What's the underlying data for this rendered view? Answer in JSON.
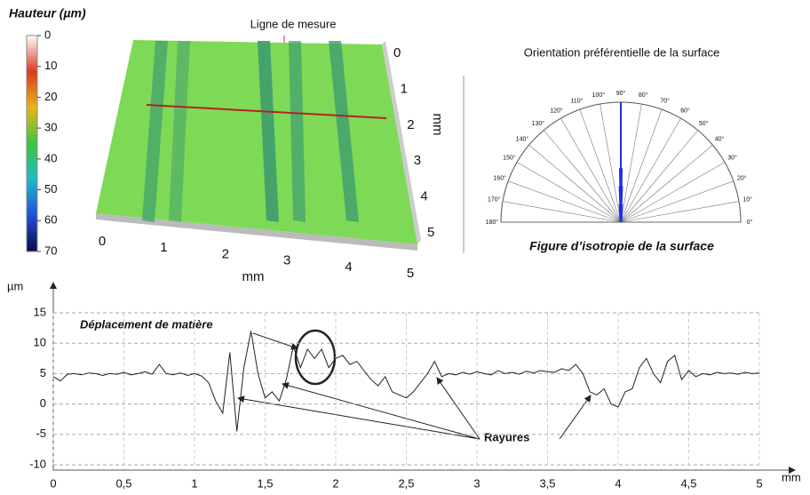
{
  "chart_data": [
    {
      "type": "colorbar",
      "title": "Hauteur (µm)",
      "ylim": [
        0,
        70
      ],
      "yticks": [
        0,
        10,
        20,
        30,
        40,
        50,
        60,
        70
      ],
      "colorscale": [
        "#ffffff",
        "#d93a1e",
        "#e8b41b",
        "#3cc63c",
        "#21b9c9",
        "#1f4fd8",
        "#0a0a45"
      ]
    },
    {
      "type": "surface3d",
      "annotation": "Ligne de mesure",
      "xlabel": "mm",
      "ylabel": "mm",
      "xlim": [
        0,
        5
      ],
      "ylim": [
        0,
        5
      ],
      "xticks": [
        0,
        1,
        2,
        3,
        4,
        5
      ],
      "yticks": [
        0,
        1,
        2,
        3,
        4,
        5
      ],
      "color": "#7ed957",
      "line_color": "#b22222"
    },
    {
      "type": "polar",
      "title": "Orientation préférentielle de la surface",
      "caption": "Figure d’isotropie  de la surface",
      "xlim": [
        0,
        180
      ],
      "xticks": [
        {
          "value": 0,
          "label": "0°"
        },
        {
          "value": 10,
          "label": "10°"
        },
        {
          "value": 20,
          "label": "20°"
        },
        {
          "value": 30,
          "label": "30°"
        },
        {
          "value": 40,
          "label": "40°"
        },
        {
          "value": 50,
          "label": "50°"
        },
        {
          "value": 60,
          "label": "60°"
        },
        {
          "value": 70,
          "label": "70°"
        },
        {
          "value": 80,
          "label": "80°"
        },
        {
          "value": 90,
          "label": "90°"
        },
        {
          "value": 100,
          "label": "100°"
        },
        {
          "value": 110,
          "label": "110°"
        },
        {
          "value": 120,
          "label": "120°"
        },
        {
          "value": 130,
          "label": "130°"
        },
        {
          "value": 140,
          "label": "140°"
        },
        {
          "value": 150,
          "label": "150°"
        },
        {
          "value": 160,
          "label": "160°"
        },
        {
          "value": 170,
          "label": "170°"
        },
        {
          "value": 180,
          "label": "180°"
        }
      ],
      "x": [
        80,
        84,
        86,
        88,
        89,
        90,
        91,
        92,
        94,
        96,
        100
      ],
      "values": [
        0.05,
        0.1,
        0.15,
        0.3,
        0.45,
        1.0,
        0.45,
        0.3,
        0.15,
        0.1,
        0.05
      ],
      "color": "#1f2fe0"
    },
    {
      "type": "line",
      "ylabel": "µm",
      "xlabel": "mm",
      "annotations": [
        "Déplacement de matière",
        "Rayures"
      ],
      "xlim": [
        0,
        5
      ],
      "ylim": [
        -10,
        15
      ],
      "xticks": [
        0,
        {
          "value": 0.5,
          "label": "0,5"
        },
        1,
        {
          "value": 1.5,
          "label": "1,5"
        },
        2,
        {
          "value": 2.5,
          "label": "2,5"
        },
        3,
        {
          "value": 3.5,
          "label": "3,5"
        },
        4,
        {
          "value": 4.5,
          "label": "4,5"
        },
        5
      ],
      "yticks": [
        -10,
        -5,
        0,
        5,
        10,
        15
      ],
      "grid": true,
      "color": "#222222",
      "x": [
        0,
        0.05,
        0.1,
        0.15,
        0.2,
        0.25,
        0.3,
        0.35,
        0.4,
        0.45,
        0.5,
        0.55,
        0.6,
        0.65,
        0.7,
        0.75,
        0.8,
        0.85,
        0.9,
        0.95,
        1,
        1.05,
        1.1,
        1.15,
        1.2,
        1.25,
        1.3,
        1.35,
        1.4,
        1.45,
        1.5,
        1.55,
        1.6,
        1.65,
        1.7,
        1.75,
        1.8,
        1.85,
        1.9,
        1.95,
        2,
        2.05,
        2.1,
        2.15,
        2.2,
        2.25,
        2.3,
        2.35,
        2.4,
        2.45,
        2.5,
        2.55,
        2.6,
        2.65,
        2.7,
        2.75,
        2.8,
        2.85,
        2.9,
        2.95,
        3,
        3.05,
        3.1,
        3.15,
        3.2,
        3.25,
        3.3,
        3.35,
        3.4,
        3.45,
        3.5,
        3.55,
        3.6,
        3.65,
        3.7,
        3.75,
        3.8,
        3.85,
        3.9,
        3.95,
        4,
        4.05,
        4.1,
        4.15,
        4.2,
        4.25,
        4.3,
        4.35,
        4.4,
        4.45,
        4.5,
        4.55,
        4.6,
        4.65,
        4.7,
        4.75,
        4.8,
        4.85,
        4.9,
        4.95,
        5
      ],
      "values": [
        4.5,
        3.8,
        4.9,
        5,
        4.8,
        5.1,
        5,
        4.7,
        5,
        4.9,
        5.2,
        4.8,
        5,
        5.3,
        4.9,
        6.5,
        5,
        4.8,
        5.1,
        4.7,
        5,
        4.6,
        3.5,
        0.5,
        -1.5,
        8.5,
        -4.5,
        6,
        12,
        5,
        1,
        2,
        0.5,
        4,
        9.5,
        6,
        9,
        7.5,
        9,
        6,
        7.5,
        8,
        6.5,
        7,
        5.5,
        4,
        3,
        4.5,
        2,
        1.5,
        1,
        2,
        3.5,
        5,
        7,
        4.5,
        5,
        4.8,
        5.2,
        4.9,
        5.3,
        5,
        4.8,
        5.5,
        5,
        5.2,
        4.9,
        5.4,
        5.1,
        5.5,
        5.3,
        5.2,
        5.8,
        5.5,
        6.5,
        5,
        2,
        1.5,
        2.5,
        0,
        -0.5,
        2,
        2.5,
        6,
        7.5,
        5,
        3.5,
        7,
        8,
        4,
        5.5,
        4.5,
        5,
        4.8,
        5.2,
        5,
        5.1,
        4.9,
        5.2,
        5,
        5.1
      ]
    }
  ]
}
